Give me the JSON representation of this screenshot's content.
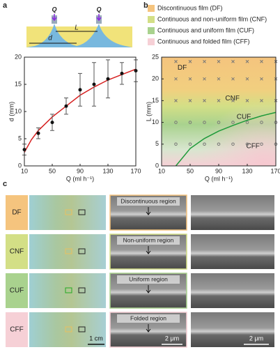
{
  "chart_data": [
    {
      "type": "scatter",
      "panel": "a",
      "xlabel": "Q (ml h⁻¹)",
      "ylabel": "d (mm)",
      "x": [
        10,
        30,
        50,
        70,
        90,
        110,
        130,
        150,
        170
      ],
      "values": [
        3,
        6,
        8,
        11,
        14,
        15,
        16,
        17,
        17.5
      ],
      "errors": [
        1,
        1,
        1.5,
        1.5,
        3,
        4,
        3.5,
        2,
        2
      ],
      "color": "#111111",
      "fit": {
        "x": [
          10,
          20,
          30,
          50,
          70,
          90,
          110,
          130,
          150,
          170
        ],
        "values": [
          2.5,
          4.8,
          6.5,
          9,
          11,
          13,
          14.5,
          15.8,
          16.8,
          17.8
        ],
        "color": "#d62020"
      },
      "xlim": [
        10,
        170
      ],
      "xticks": [
        10,
        50,
        90,
        130,
        170
      ],
      "ylim": [
        0,
        20
      ],
      "yticks": [
        0,
        5,
        10,
        15,
        20
      ]
    },
    {
      "type": "phase",
      "panel": "b",
      "xlabel": "Q (ml h⁻¹)",
      "ylabel": "L (mm)",
      "legend": [
        {
          "name": "Discontinuous film (DF)",
          "color": "#f5c47e"
        },
        {
          "name": "Continuous and non-uniform film (CNF)",
          "color": "#d3df86"
        },
        {
          "name": "Continuous and uniform film (CUF)",
          "color": "#a9d28e"
        },
        {
          "name": "Continuous and folded film (CFF)",
          "color": "#f6d0d6"
        }
      ],
      "regions": [
        "DF",
        "CNF",
        "CUF",
        "CFF"
      ],
      "cross_points": {
        "x": [
          30,
          50,
          70,
          90,
          110,
          130,
          150,
          170,
          30,
          50,
          70,
          90,
          110,
          130,
          150,
          170,
          30,
          50,
          70,
          90,
          110,
          130,
          150,
          170
        ],
        "y": [
          24,
          24,
          24,
          24,
          24,
          24,
          24,
          24,
          20,
          20,
          20,
          20,
          20,
          20,
          20,
          20,
          15,
          15,
          15,
          15,
          15,
          15,
          15,
          15
        ]
      },
      "circle_points": {
        "x": [
          30,
          50,
          70,
          90,
          110,
          130,
          150,
          170,
          30,
          50,
          70,
          90,
          110,
          130,
          150,
          170
        ],
        "y": [
          10,
          10,
          10,
          10,
          10,
          10,
          10,
          10,
          5,
          5,
          5,
          5,
          5,
          5,
          5,
          5
        ]
      },
      "boundary": {
        "x": [
          30,
          50,
          70,
          90,
          110,
          130,
          150,
          170
        ],
        "values": [
          0,
          4,
          6.3,
          8,
          9.3,
          10.5,
          11.5,
          12.3
        ],
        "color": "#1e9a3a"
      },
      "xlim": [
        10,
        170
      ],
      "xticks": [
        10,
        50,
        90,
        130,
        170
      ],
      "ylim": [
        0,
        25
      ],
      "yticks": [
        0,
        5,
        10,
        15,
        20,
        25
      ]
    }
  ],
  "schematic": {
    "labels": [
      "Q",
      "Q",
      "L",
      "d"
    ]
  },
  "panel_c": {
    "label": "c",
    "rows": [
      {
        "label": "DF",
        "region": "Discontinuous region",
        "color": "#f5c47e"
      },
      {
        "label": "CNF",
        "region": "Non-uniform region",
        "color": "#d3df86"
      },
      {
        "label": "CUF",
        "region": "Uniform region",
        "color": "#a9d28e"
      },
      {
        "label": "CFF",
        "region": "Folded region",
        "color": "#f6d0d6"
      }
    ],
    "scale_bars": [
      "1 cm",
      "2 μm",
      "2 μm"
    ]
  }
}
